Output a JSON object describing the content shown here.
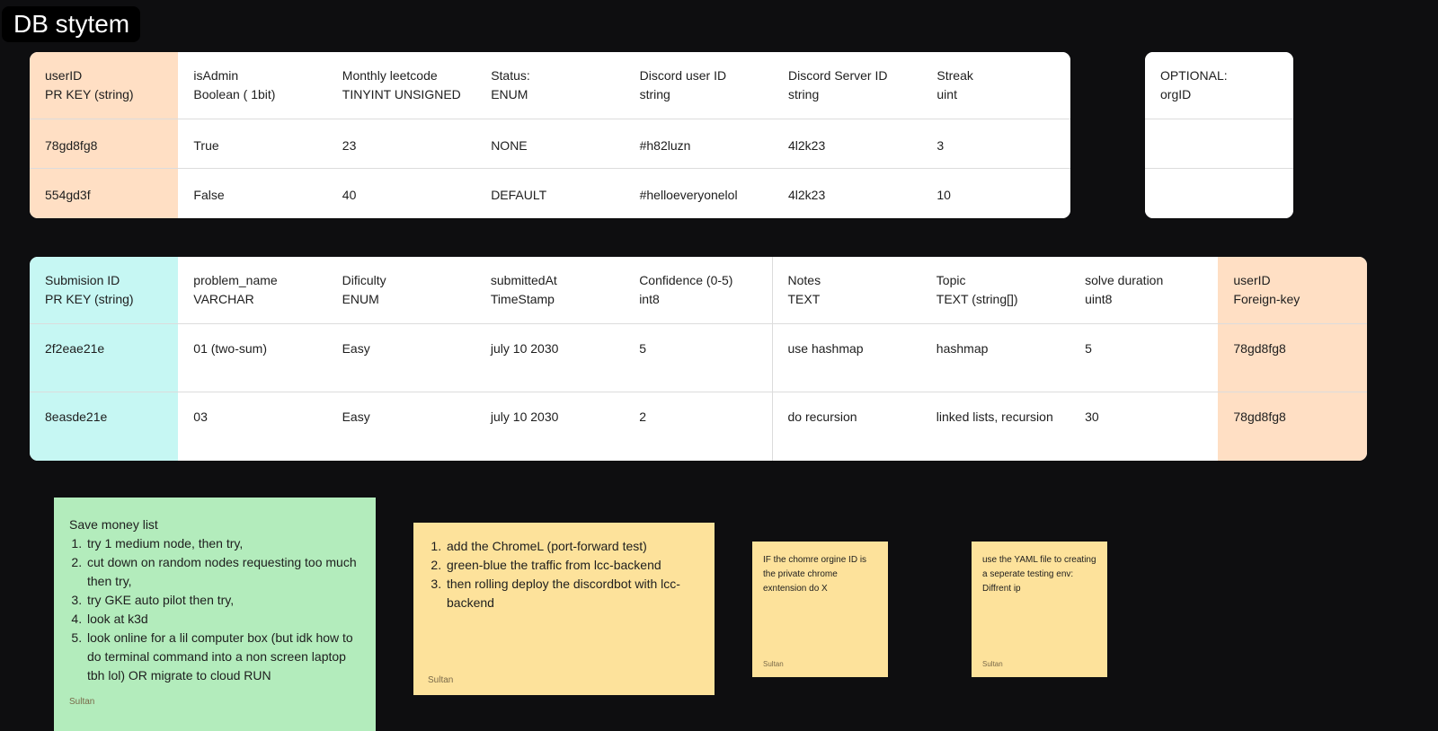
{
  "header": {
    "title": "DB stytem"
  },
  "tables": [
    {
      "header": [
        [
          "userID",
          "PR KEY (string)"
        ],
        [
          "isAdmin",
          "Boolean ( 1bit)"
        ],
        [
          "Monthly leetcode",
          "TINYINT UNSIGNED"
        ],
        [
          "Status:",
          "ENUM"
        ],
        [
          "Discord user ID",
          "string"
        ],
        [
          "Discord Server ID",
          "string"
        ],
        [
          "Streak",
          "uint"
        ]
      ],
      "rows": [
        [
          "78gd8fg8",
          "True",
          "23",
          "NONE",
          "#h82luzn",
          "4l2k23",
          "3"
        ],
        [
          "554gd3f",
          "False",
          "40",
          "DEFAULT",
          "#helloeveryonelol",
          "4l2k23",
          "10"
        ]
      ]
    },
    {
      "header": [
        [
          "OPTIONAL:",
          "orgID"
        ]
      ],
      "rows": []
    },
    {
      "header": [
        [
          "Submision ID",
          "PR KEY (string)"
        ],
        [
          "problem_name",
          "VARCHAR"
        ],
        [
          "Dificulty",
          "ENUM"
        ],
        [
          "submittedAt",
          "TimeStamp"
        ],
        [
          "Confidence (0-5)",
          "int8"
        ],
        [
          "Notes",
          "TEXT"
        ],
        [
          "Topic",
          "TEXT (string[])"
        ],
        [
          "solve duration",
          "uint8"
        ],
        [
          "userID",
          "Foreign-key"
        ]
      ],
      "rows": [
        [
          "2f2eae21e",
          "01 (two-sum)",
          "Easy",
          "july 10 2030",
          "5",
          "use hashmap",
          "hashmap",
          "5",
          "78gd8fg8"
        ],
        [
          "8easde21e",
          "03",
          "Easy",
          "july 10 2030",
          "2",
          "do recursion",
          "linked lists, recursion",
          "30",
          "78gd8fg8"
        ]
      ]
    }
  ],
  "notes": [
    {
      "title": "Save money list",
      "items": [
        "try 1 medium node, then try,",
        "cut down on random nodes requesting too much  then try,",
        "try GKE auto pilot  then try,",
        "look at k3d",
        "look online for a lil computer box (but idk how to do terminal command into a non screen laptop tbh lol) OR migrate to cloud RUN"
      ],
      "author": "Sultan"
    },
    {
      "items": [
        "add the ChromeL (port-forward test)",
        "green-blue the traffic from lcc-backend",
        "then rolling deploy the discordbot with lcc-backend"
      ],
      "author": "Sultan"
    },
    {
      "text": "IF the chomre orgine ID is the private chrome exntension do X",
      "author": "Sultan"
    },
    {
      "lines": [
        "use the YAML file to creating a seperate testing env:",
        "Diffrent ip"
      ],
      "author": "Sultan"
    }
  ]
}
